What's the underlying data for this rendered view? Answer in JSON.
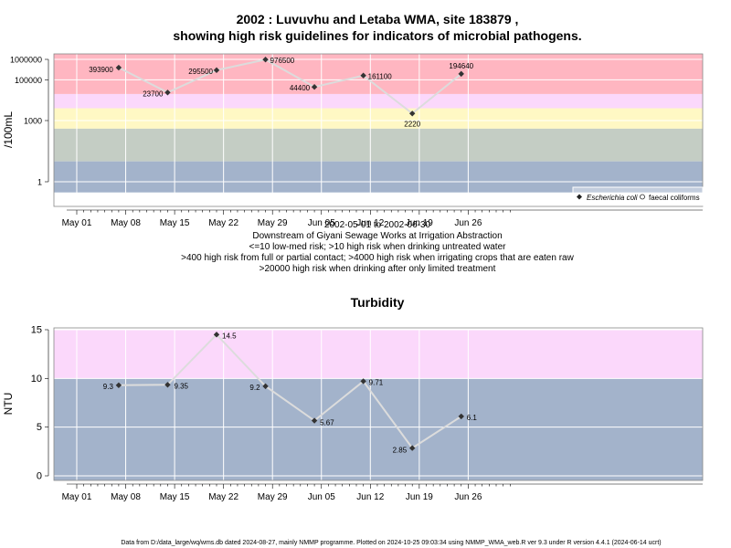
{
  "charts": [
    {
      "title_line1": "2002 : Luvuvhu and Letaba WMA, site 183879 ,",
      "title_line2": "showing high risk guidelines for indicators of microbial pathogens.",
      "ylabel": "/100mL",
      "notes": [
        "2002-05-01 to 2002-06-30",
        "Downstream of Giyani Sewage Works at Irrigation Abstraction",
        "<=10 low-med risk; >10 high risk when drinking untreated water",
        ">400 high risk from full or partial contact; >4000 high risk when irrigating crops that are eaten raw",
        ">20000 high risk when drinking after only limited treatment"
      ],
      "legend": [
        "Escherichia coli",
        "faecal coliforms"
      ]
    },
    {
      "title": "Turbidity",
      "ylabel": "NTU"
    }
  ],
  "footer": "Data from D:/data_large/wq/wms.db dated 2024-08-27, mainly NMMP programme. Plotted on 2024-10-25 09:03:34 using NMMP_WMA_web.R ver 9.3 under R version 4.4.1 (2024-06-14 ucrt)",
  "colors": {
    "band_red": "#ffb6c1",
    "band_pink": "#fbd8fb",
    "band_yellow": "#fff8c4",
    "band_grey_green": "#c4cdc4",
    "band_blue": "#a3b3cb",
    "line": "#dcdcdc",
    "marker": "#333333"
  },
  "chart_data": [
    {
      "type": "line",
      "x_ticks": [
        "May 01",
        "May 08",
        "May 15",
        "May 22",
        "May 29",
        "Jun 05",
        "Jun 12",
        "Jun 19",
        "Jun 26"
      ],
      "y_scale": "log",
      "y_ticks": [
        "1",
        "1000",
        "100000",
        "1000000"
      ],
      "x": [
        "2002-05-07",
        "2002-05-14",
        "2002-05-21",
        "2002-05-28",
        "2002-06-04",
        "2002-06-11",
        "2002-06-18",
        "2002-06-25"
      ],
      "values": [
        393900,
        23700,
        295500,
        976500,
        44400,
        161100,
        2220,
        194640
      ],
      "labels": [
        "393900",
        "23700",
        "295500",
        "976500",
        "44400",
        "161100",
        "2220",
        "194640"
      ],
      "series_name": "Escherichia coli",
      "bands": [
        {
          "from": 20000,
          "to": 2000000,
          "color": "band_red"
        },
        {
          "from": 4000,
          "to": 20000,
          "color": "band_pink"
        },
        {
          "from": 400,
          "to": 4000,
          "color": "band_yellow"
        },
        {
          "from": 10,
          "to": 400,
          "color": "band_grey_green"
        },
        {
          "from": 0.3,
          "to": 10,
          "color": "band_blue"
        }
      ]
    },
    {
      "type": "line",
      "x_ticks": [
        "May 01",
        "May 08",
        "May 15",
        "May 22",
        "May 29",
        "Jun 05",
        "Jun 12",
        "Jun 19",
        "Jun 26"
      ],
      "ylim": [
        -0.5,
        15
      ],
      "y_ticks": [
        "0",
        "5",
        "10",
        "15"
      ],
      "x": [
        "2002-05-07",
        "2002-05-14",
        "2002-05-21",
        "2002-05-28",
        "2002-06-04",
        "2002-06-11",
        "2002-06-18",
        "2002-06-25"
      ],
      "values": [
        9.3,
        9.35,
        14.5,
        9.2,
        5.67,
        9.71,
        2.85,
        6.1
      ],
      "labels": [
        "9.3",
        "9.35",
        "14.5",
        "9.2",
        "5.67",
        "9.71",
        "2.85",
        "6.1"
      ],
      "bands": [
        {
          "from": 10,
          "to": 15,
          "color": "band_pink"
        },
        {
          "from": -0.5,
          "to": 10,
          "color": "band_blue"
        }
      ]
    }
  ]
}
